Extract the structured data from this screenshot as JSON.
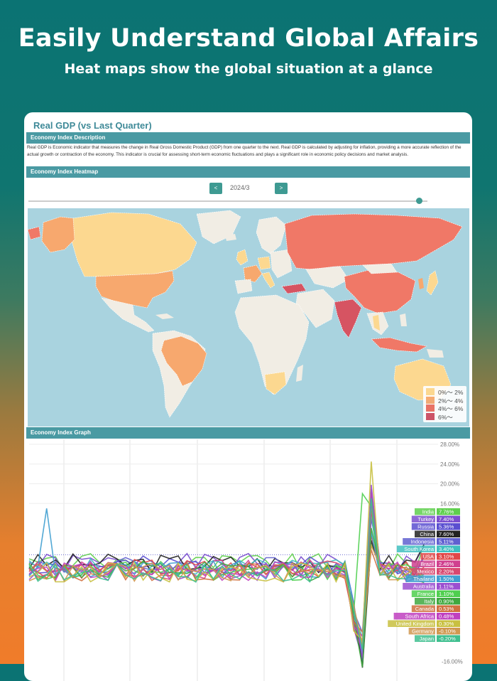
{
  "hero": {
    "title": "Easily Understand Global Affairs",
    "subtitle": "Heat maps show the global situation at a glance"
  },
  "card": {
    "title": "Real GDP (vs Last Quarter)",
    "description_header": "Economy Index Description",
    "description": "Real GDP is Economic indicator that measures the change in Real Gross Domestic Product (GDP) from one quarter to the next. Real GDP is calculated by adjusting for inflation, providing a more accurate reflection of the actual growth or contraction of the economy. This indicator is crucial for assessing short-term economic fluctuations and plays a significant role in economic policy decisions and market analysis.",
    "heatmap_header": "Economy Index Heatmap",
    "graph_header": "Economy Index Graph"
  },
  "nav": {
    "prev_label": "<",
    "next_label": ">",
    "period": "2024/3",
    "slider_position": 0.98
  },
  "legend": [
    {
      "label": "0%〜 2%",
      "color": "#fcd890"
    },
    {
      "label": "2%〜 4%",
      "color": "#f7a86e"
    },
    {
      "label": "4%〜 6%",
      "color": "#ee6b5c"
    },
    {
      "label": "6%〜",
      "color": "#d04a5e"
    }
  ],
  "map_colors": {
    "ocean": "#a9d3df",
    "nodata": "#f1ede4",
    "c0": "#fcd890",
    "c1": "#f7a86e",
    "c2": "#f07867",
    "c3": "#d65462"
  },
  "chart_data": {
    "type": "line",
    "y_ticks": [
      "28.00%",
      "24.00%",
      "20.00%",
      "16.00%"
    ],
    "bottom_tick": "-16.00%",
    "ylim": [
      -20,
      28
    ],
    "series_labels": [
      {
        "name": "India",
        "value": "7.76%",
        "color": "#5fcf4d"
      },
      {
        "name": "Turkey",
        "value": "7.40%",
        "color": "#7b4fcf"
      },
      {
        "name": "Russia",
        "value": "5.36%",
        "color": "#5a4fd0"
      },
      {
        "name": "China",
        "value": "7.60%",
        "color": "#222222"
      },
      {
        "name": "Indonesia",
        "value": "5.11%",
        "color": "#6060d0"
      },
      {
        "name": "South Korea",
        "value": "3.40%",
        "color": "#3fbfbf"
      },
      {
        "name": "USA",
        "value": "3.10%",
        "color": "#e04848"
      },
      {
        "name": "Brazil",
        "value": "2.46%",
        "color": "#d0408f"
      },
      {
        "name": "Mexico",
        "value": "2.20%",
        "color": "#d84870"
      },
      {
        "name": "Thailand",
        "value": "1.50%",
        "color": "#3f9fd0"
      },
      {
        "name": "Australia",
        "value": "1.11%",
        "color": "#9b4fd0"
      },
      {
        "name": "France",
        "value": "1.10%",
        "color": "#4fcf4f"
      },
      {
        "name": "Italy",
        "value": "0.90%",
        "color": "#3fa83f"
      },
      {
        "name": "Canada",
        "value": "0.53%",
        "color": "#d0703f"
      },
      {
        "name": "South Africa",
        "value": "0.48%",
        "color": "#c040c0"
      },
      {
        "name": "United Kingdom",
        "value": "0.30%",
        "color": "#c8c040"
      },
      {
        "name": "Germany",
        "value": "-0.10%",
        "color": "#d09850"
      },
      {
        "name": "Japan",
        "value": "-0.20%",
        "color": "#3fbf8f"
      }
    ]
  }
}
